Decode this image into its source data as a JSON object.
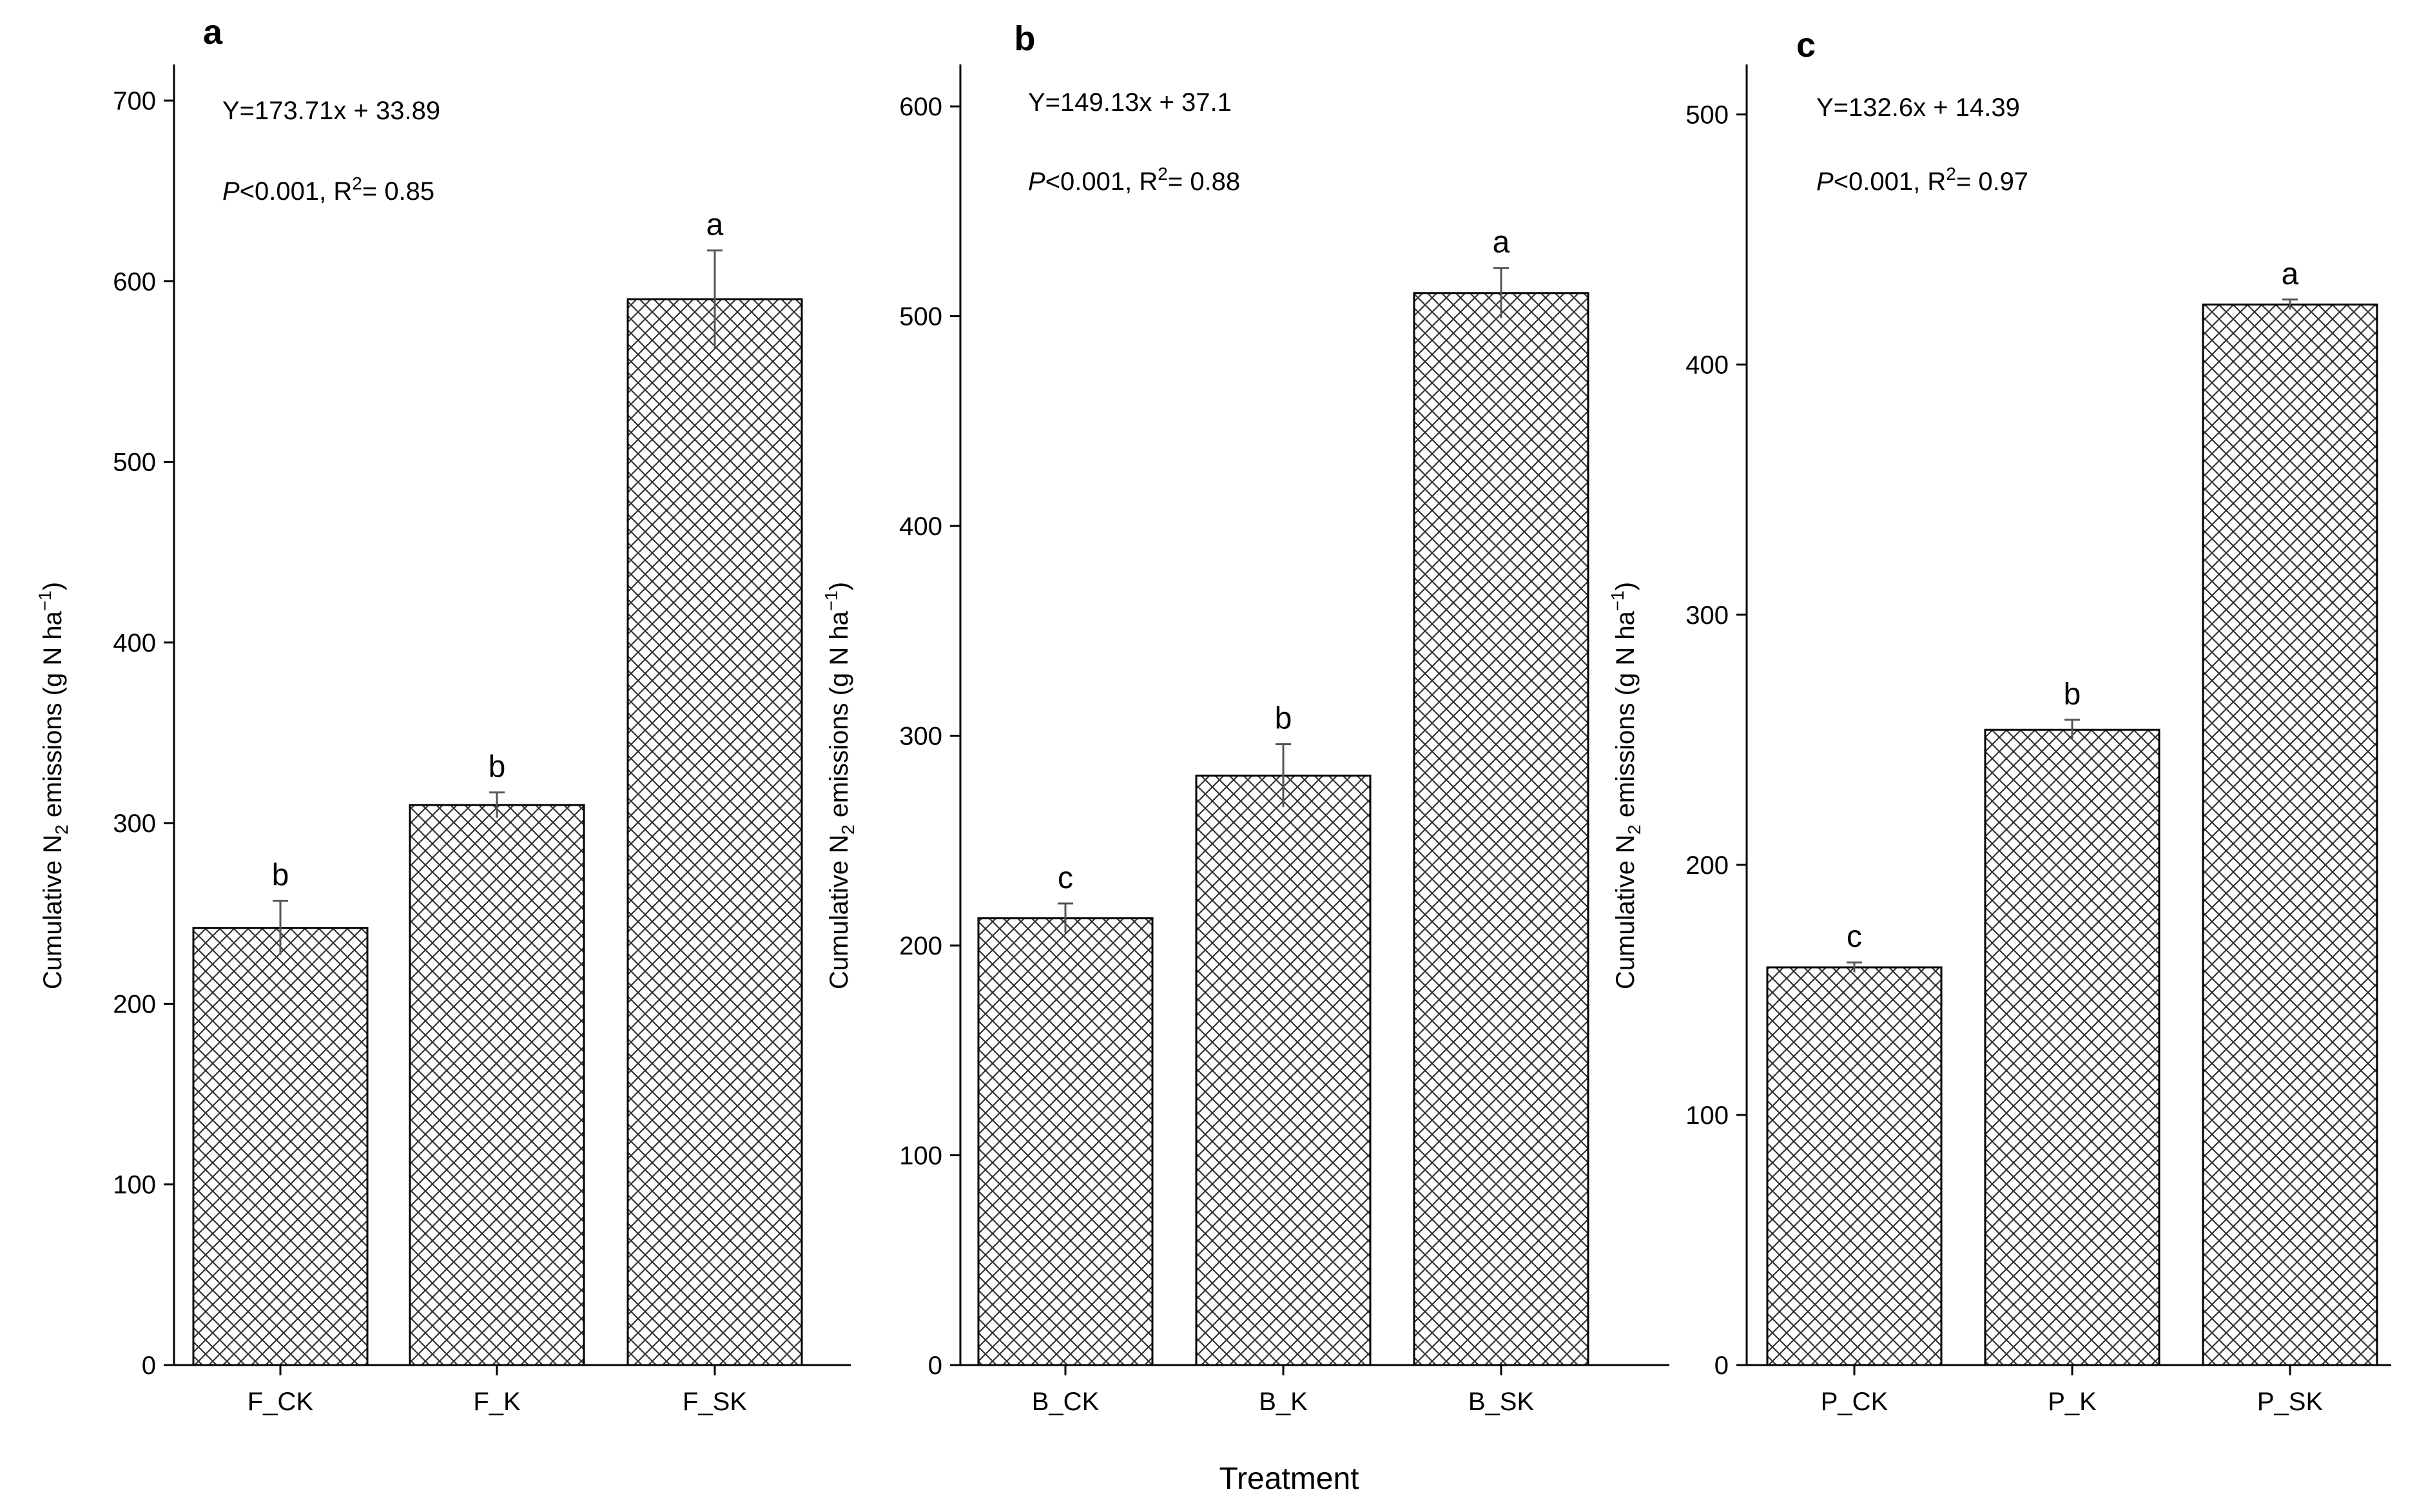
{
  "xlabel": "Treatment",
  "ylabel_parts": {
    "main": "Cumulative N",
    "sub": "2",
    "rest": " emissions (g N ha",
    "sup": "−1",
    "close": ")"
  },
  "chart_data": [
    {
      "type": "bar",
      "panel": "a",
      "title": "a",
      "categories": [
        "F_CK",
        "F_K",
        "F_SK"
      ],
      "values": [
        242,
        310,
        590
      ],
      "errors": [
        15,
        7,
        27
      ],
      "significance": [
        "b",
        "b",
        "a"
      ],
      "ylim": [
        0,
        720
      ],
      "yticks": [
        0,
        100,
        200,
        300,
        400,
        500,
        600,
        700
      ],
      "ylabel": "Cumulative N2 emissions (g N ha−1)",
      "equation": "Y=173.71x + 33.89",
      "stats": {
        "p_symbol": "P",
        "p_text": "<0.001, R",
        "r_sup": "2",
        "r_value": "= 0.85"
      }
    },
    {
      "type": "bar",
      "panel": "b",
      "title": "b",
      "categories": [
        "B_CK",
        "B_K",
        "B_SK"
      ],
      "values": [
        213,
        281,
        511
      ],
      "errors": [
        7,
        15,
        12
      ],
      "significance": [
        "c",
        "b",
        "a"
      ],
      "ylim": [
        0,
        620
      ],
      "yticks": [
        0,
        100,
        200,
        300,
        400,
        500,
        600
      ],
      "ylabel": "Cumulative N2 emissions (g N ha−1)",
      "equation": "Y=149.13x + 37.1",
      "stats": {
        "p_symbol": "P",
        "p_text": "<0.001, R",
        "r_sup": "2",
        "r_value": "= 0.88"
      }
    },
    {
      "type": "bar",
      "panel": "c",
      "title": "c",
      "categories": [
        "P_CK",
        "P_K",
        "P_SK"
      ],
      "values": [
        159,
        254,
        424
      ],
      "errors": [
        2,
        4,
        2
      ],
      "significance": [
        "c",
        "b",
        "a"
      ],
      "ylim": [
        0,
        520
      ],
      "yticks": [
        0,
        100,
        200,
        300,
        400,
        500
      ],
      "ylabel": "Cumulative N2 emissions (g N ha−1)",
      "equation": "Y=132.6x + 14.39",
      "stats": {
        "p_symbol": "P",
        "p_text": "<0.001, R",
        "r_sup": "2",
        "r_value": "= 0.97"
      }
    }
  ]
}
